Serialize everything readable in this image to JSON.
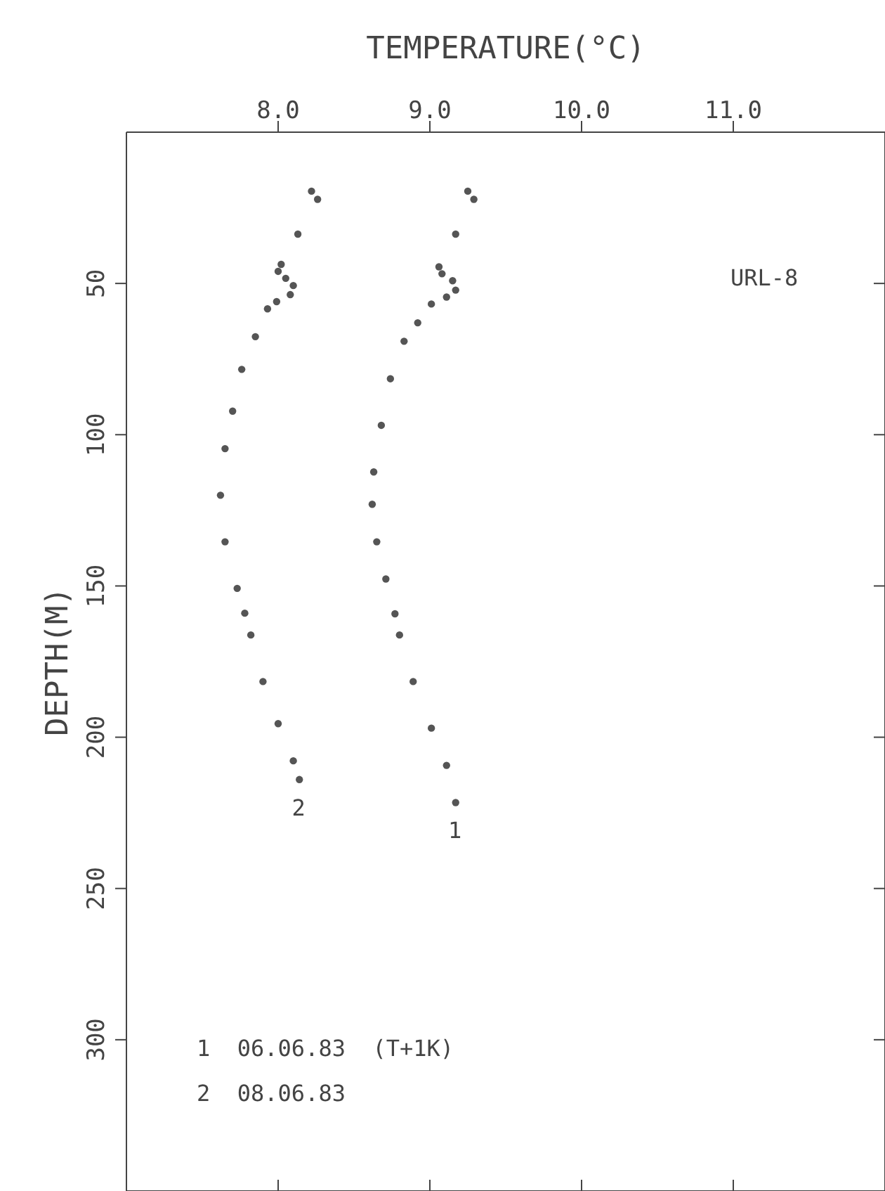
{
  "chart_data": {
    "type": "scatter",
    "xlabel": "TEMPERATURE(°C)",
    "ylabel": "DEPTH(M)",
    "xlim": [
      7,
      12
    ],
    "xticks": [
      {
        "value": 8,
        "label": "8.0"
      },
      {
        "value": 9,
        "label": "9.0"
      },
      {
        "value": 10,
        "label": "10.0"
      },
      {
        "value": 11,
        "label": "11.0"
      }
    ],
    "ylim": [
      350,
      0
    ],
    "yticks": [
      50,
      100,
      150,
      200,
      250,
      300
    ],
    "marker": "circle",
    "legend": false,
    "series": [
      {
        "name": "1",
        "color": "#555555",
        "x": [
          9.25,
          9.29,
          9.17,
          9.06,
          9.08,
          9.15,
          9.17,
          9.11,
          9.01,
          8.92,
          8.83,
          8.74,
          8.68,
          8.63,
          8.62,
          8.65,
          8.71,
          8.77,
          8.8,
          8.89,
          9.01,
          9.11,
          9.17
        ],
        "values": [
          19.5,
          22.2,
          33.7,
          44.5,
          46.8,
          49.1,
          52.2,
          54.5,
          56.8,
          63,
          69.1,
          81.5,
          96.9,
          112.3,
          123,
          135.4,
          147.7,
          159.2,
          166.2,
          181.6,
          197,
          209.3,
          221.6
        ]
      },
      {
        "name": "2",
        "color": "#555555",
        "x": [
          8.22,
          8.26,
          8.13,
          8.02,
          8.0,
          8.05,
          8.1,
          8.08,
          7.99,
          7.93,
          7.85,
          7.76,
          7.7,
          7.65,
          7.62,
          7.65,
          7.73,
          7.78,
          7.82,
          7.9,
          8.0,
          8.1,
          8.14
        ],
        "values": [
          19.5,
          22.2,
          33.7,
          43.7,
          46,
          48.3,
          50.7,
          53.7,
          56,
          58.4,
          67.6,
          78.4,
          92.2,
          104.6,
          120,
          135.4,
          150.8,
          159,
          166.2,
          181.6,
          195.5,
          207.8,
          214
        ]
      }
    ],
    "annotations": [
      "URL-8",
      "1  06.06.83  (T+1K)",
      "2  08.06.83"
    ]
  }
}
